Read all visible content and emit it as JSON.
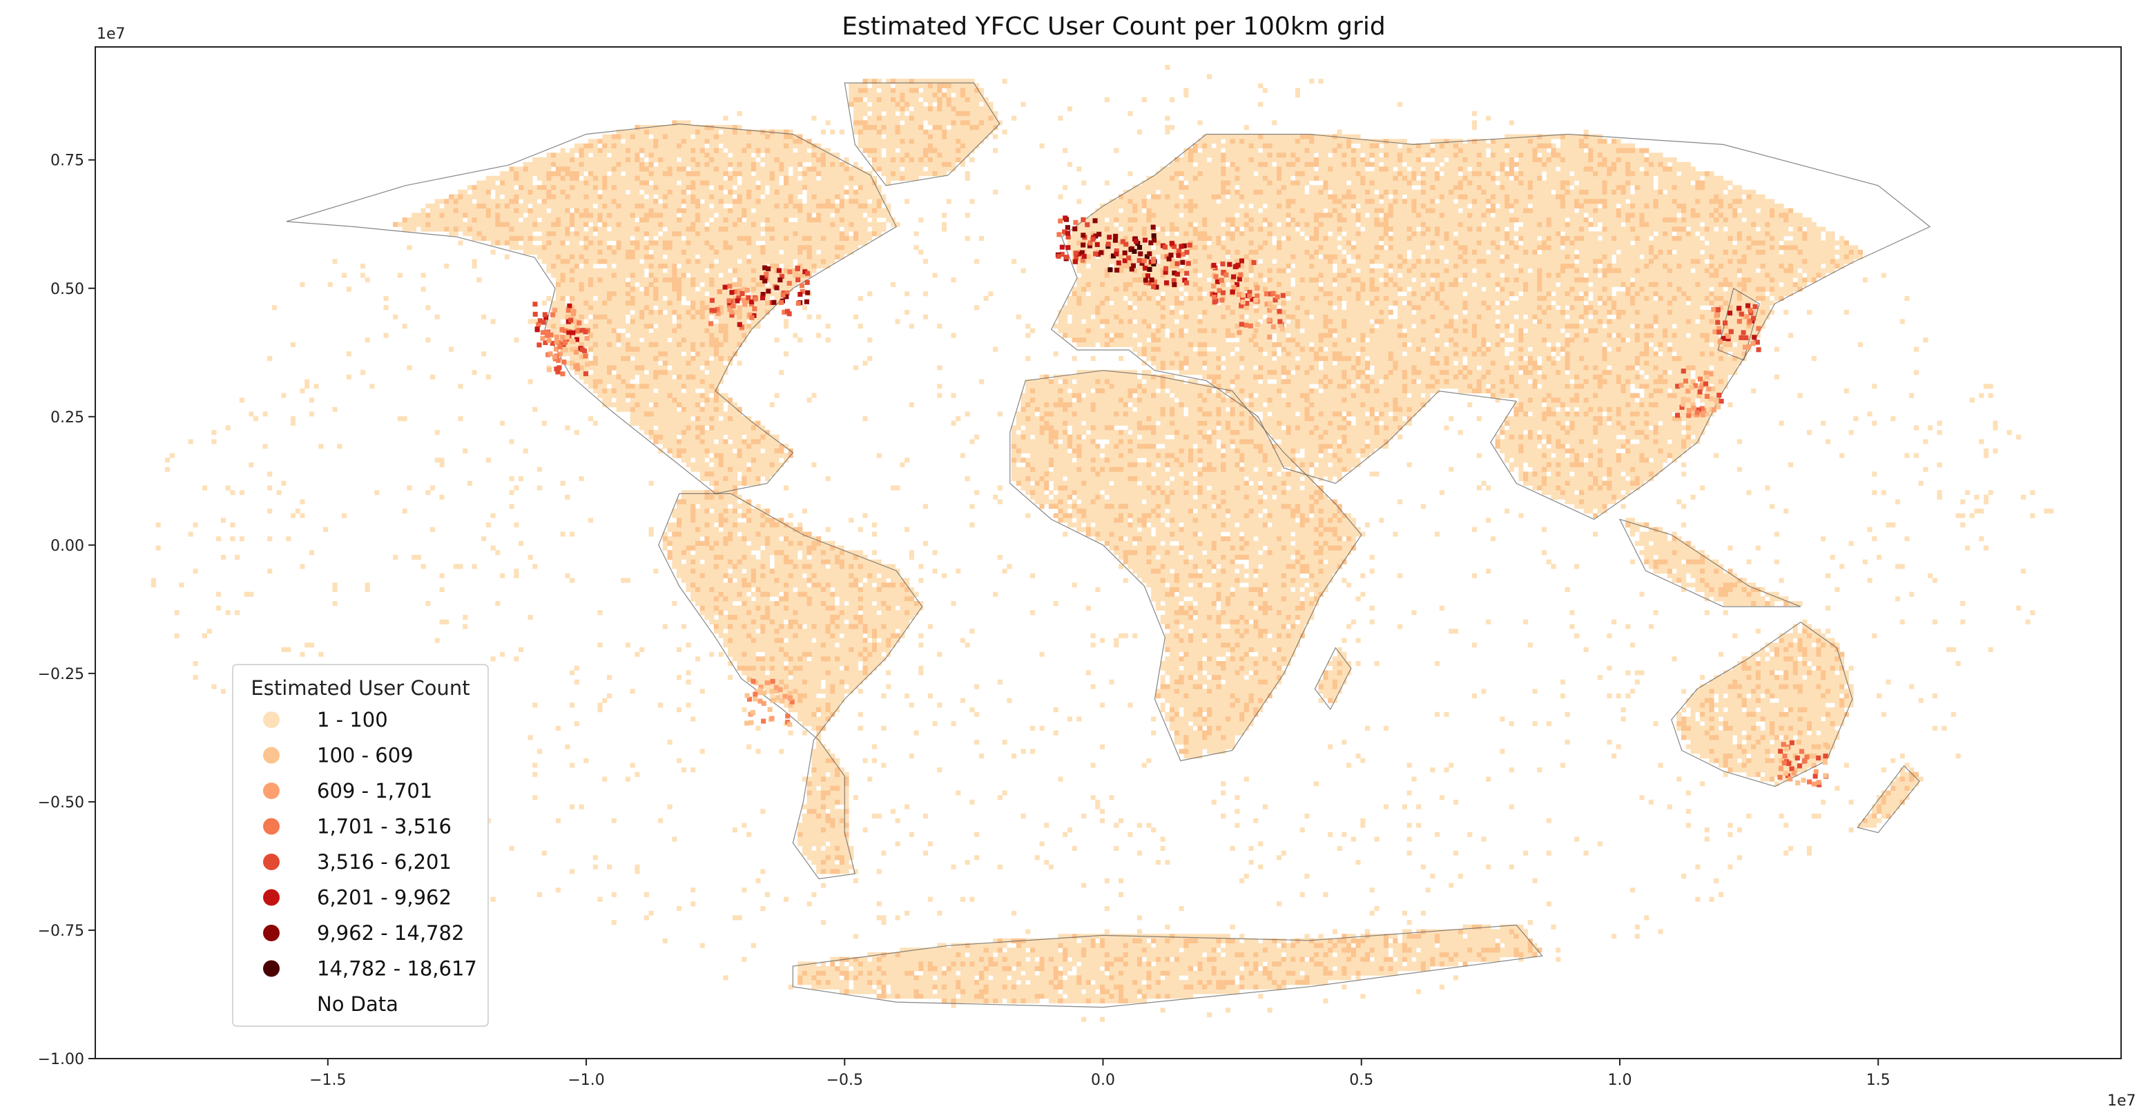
{
  "chart_data": {
    "type": "heatmap",
    "title": "Estimated YFCC User Count per 100km grid",
    "x_scale_label": "1e7",
    "y_scale_label": "1e7",
    "xlim": [
      -1.95,
      1.97
    ],
    "ylim": [
      -1.0,
      0.97
    ],
    "x_ticks": [
      -1.5,
      -1.0,
      -0.5,
      0.0,
      0.5,
      1.0,
      1.5
    ],
    "x_tick_labels": [
      "−1.5",
      "−1.0",
      "−0.5",
      "0.0",
      "0.5",
      "1.0",
      "1.5"
    ],
    "y_ticks": [
      0.75,
      0.5,
      0.25,
      0.0,
      -0.25,
      -0.5,
      -0.75,
      -1.0
    ],
    "y_tick_labels": [
      "0.75",
      "0.50",
      "0.25",
      "0.00",
      "−0.25",
      "−0.50",
      "−0.75",
      "−1.00"
    ],
    "grid": false,
    "legend": {
      "title": "Estimated User Count",
      "placement": "lower-left",
      "entries": [
        {
          "label": "1 - 100",
          "color": "#fde0b8"
        },
        {
          "label": "100 - 609",
          "color": "#fcc48f"
        },
        {
          "label": "609 - 1,701",
          "color": "#fca070"
        },
        {
          "label": "1,701 - 3,516",
          "color": "#f5784f"
        },
        {
          "label": "3,516 - 6,201",
          "color": "#e34a33"
        },
        {
          "label": "6,201 - 9,962",
          "color": "#c21212"
        },
        {
          "label": "9,962 - 14,782",
          "color": "#8b0505"
        },
        {
          "label": "14,782 - 18,617",
          "color": "#4a0000"
        },
        {
          "label": "No Data",
          "color": "#ffffff"
        }
      ]
    },
    "hotspots": [
      {
        "x": 0.05,
        "y": 0.58,
        "class": 7
      },
      {
        "x": -0.05,
        "y": 0.6,
        "class": 6
      },
      {
        "x": 0.12,
        "y": 0.55,
        "class": 6
      },
      {
        "x": 0.25,
        "y": 0.52,
        "class": 5
      },
      {
        "x": -0.62,
        "y": 0.5,
        "class": 6
      },
      {
        "x": -0.72,
        "y": 0.47,
        "class": 5
      },
      {
        "x": -1.06,
        "y": 0.43,
        "class": 5
      },
      {
        "x": -1.04,
        "y": 0.38,
        "class": 4
      },
      {
        "x": 1.22,
        "y": 0.43,
        "class": 5
      },
      {
        "x": 1.15,
        "y": 0.3,
        "class": 4
      },
      {
        "x": 1.35,
        "y": -0.42,
        "class": 4
      },
      {
        "x": 0.3,
        "y": 0.45,
        "class": 4
      },
      {
        "x": -0.65,
        "y": -0.3,
        "class": 3
      }
    ]
  }
}
